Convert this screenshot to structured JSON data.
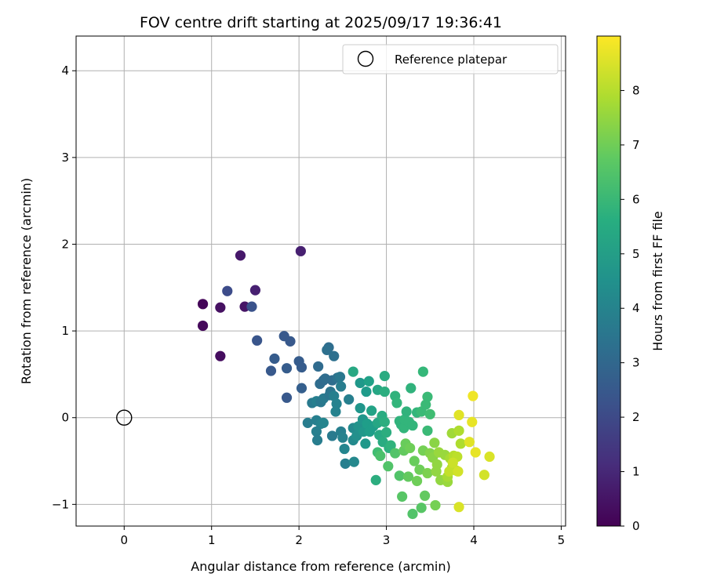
{
  "chart_data": {
    "type": "scatter",
    "title": "FOV centre drift starting at 2025/09/17 19:36:41",
    "xlabel": "Angular distance from reference (arcmin)",
    "ylabel": "Rotation from reference (arcmin)",
    "xlim": [
      -0.55,
      5.05
    ],
    "ylim": [
      -1.25,
      4.4
    ],
    "xticks": [
      0,
      1,
      2,
      3,
      4,
      5
    ],
    "yticks": [
      -1,
      0,
      1,
      2,
      3,
      4
    ],
    "grid": true,
    "legend": {
      "position": "top-right",
      "entries": [
        "Reference platepar"
      ]
    },
    "reference_point": {
      "label": "Reference platepar",
      "x": 0,
      "y": 0,
      "marker": "open-circle"
    },
    "colorbar": {
      "label": "Hours from first FF file",
      "colormap": "viridis",
      "range": [
        0,
        9
      ],
      "ticks": [
        0,
        1,
        2,
        3,
        4,
        5,
        6,
        7,
        8
      ]
    },
    "points": [
      [
        0.9,
        1.31,
        0.1
      ],
      [
        0.9,
        1.06,
        0.2
      ],
      [
        1.1,
        0.71,
        0.3
      ],
      [
        1.1,
        1.27,
        0.4
      ],
      [
        1.33,
        1.87,
        0.6
      ],
      [
        1.38,
        1.28,
        0.5
      ],
      [
        1.5,
        1.47,
        0.8
      ],
      [
        2.02,
        1.92,
        0.8
      ],
      [
        1.18,
        1.46,
        2.1
      ],
      [
        1.46,
        1.28,
        2.3
      ],
      [
        1.52,
        0.89,
        2.4
      ],
      [
        1.68,
        0.54,
        2.5
      ],
      [
        1.72,
        0.68,
        2.6
      ],
      [
        1.83,
        0.94,
        2.5
      ],
      [
        1.86,
        0.23,
        2.5
      ],
      [
        1.86,
        0.57,
        2.6
      ],
      [
        1.9,
        0.88,
        2.5
      ],
      [
        2.0,
        0.65,
        2.6
      ],
      [
        2.03,
        0.58,
        2.6
      ],
      [
        2.03,
        0.34,
        2.7
      ],
      [
        2.22,
        0.59,
        3.1
      ],
      [
        2.24,
        0.39,
        3.2
      ],
      [
        2.28,
        0.43,
        3.1
      ],
      [
        2.3,
        0.45,
        3.2
      ],
      [
        2.34,
        0.81,
        3.2
      ],
      [
        2.32,
        0.78,
        3.3
      ],
      [
        2.4,
        0.71,
        3.3
      ],
      [
        2.38,
        0.43,
        3.2
      ],
      [
        2.36,
        0.3,
        3.5
      ],
      [
        2.44,
        0.46,
        3.4
      ],
      [
        2.47,
        0.47,
        3.6
      ],
      [
        2.48,
        0.36,
        3.8
      ],
      [
        2.15,
        0.17,
        3.7
      ],
      [
        2.2,
        0.19,
        3.9
      ],
      [
        2.25,
        0.18,
        3.6
      ],
      [
        2.28,
        0.22,
        3.7
      ],
      [
        2.35,
        0.26,
        3.5
      ],
      [
        2.4,
        0.25,
        3.9
      ],
      [
        2.43,
        0.16,
        4.0
      ],
      [
        2.42,
        0.07,
        4.0
      ],
      [
        2.1,
        -0.06,
        3.8
      ],
      [
        2.2,
        -0.03,
        3.9
      ],
      [
        2.25,
        -0.07,
        4.0
      ],
      [
        2.28,
        -0.06,
        4.1
      ],
      [
        2.2,
        -0.16,
        3.9
      ],
      [
        2.21,
        -0.26,
        3.8
      ],
      [
        2.38,
        -0.21,
        3.7
      ],
      [
        2.48,
        -0.16,
        3.9
      ],
      [
        2.5,
        -0.23,
        4.0
      ],
      [
        2.52,
        -0.36,
        4.1
      ],
      [
        2.53,
        -0.53,
        3.9
      ],
      [
        2.57,
        0.21,
        3.9
      ],
      [
        2.62,
        -0.12,
        4.3
      ],
      [
        2.62,
        -0.26,
        4.3
      ],
      [
        2.63,
        -0.51,
        4.2
      ],
      [
        2.66,
        -0.21,
        4.5
      ],
      [
        2.68,
        -0.1,
        4.6
      ],
      [
        2.7,
        0.11,
        4.7
      ],
      [
        2.7,
        0.4,
        4.8
      ],
      [
        2.73,
        -0.02,
        4.7
      ],
      [
        2.74,
        -0.16,
        4.8
      ],
      [
        2.76,
        -0.3,
        4.8
      ],
      [
        2.77,
        0.3,
        4.9
      ],
      [
        2.78,
        -0.07,
        5.0
      ],
      [
        2.8,
        0.42,
        5.1
      ],
      [
        2.81,
        -0.16,
        5.0
      ],
      [
        2.83,
        0.08,
        5.2
      ],
      [
        2.85,
        -0.1,
        5.0
      ],
      [
        2.62,
        0.53,
        5.4
      ],
      [
        2.9,
        0.32,
        5.3
      ],
      [
        2.9,
        -0.06,
        5.3
      ],
      [
        2.92,
        -0.2,
        5.4
      ],
      [
        2.95,
        0.02,
        5.5
      ],
      [
        2.96,
        -0.28,
        5.5
      ],
      [
        2.98,
        0.3,
        5.6
      ],
      [
        2.98,
        0.48,
        5.5
      ],
      [
        2.98,
        -0.05,
        5.6
      ],
      [
        3.0,
        -0.17,
        5.6
      ],
      [
        3.03,
        -0.35,
        5.7
      ],
      [
        3.05,
        -0.32,
        5.8
      ],
      [
        3.1,
        0.25,
        5.8
      ],
      [
        3.12,
        0.17,
        5.9
      ],
      [
        3.15,
        -0.04,
        5.8
      ],
      [
        3.17,
        -0.08,
        5.8
      ],
      [
        3.2,
        -0.12,
        5.9
      ],
      [
        3.21,
        -0.02,
        5.9
      ],
      [
        3.23,
        0.07,
        5.8
      ],
      [
        3.26,
        -0.05,
        5.9
      ],
      [
        3.28,
        0.34,
        5.8
      ],
      [
        3.3,
        -0.09,
        5.9
      ],
      [
        3.35,
        0.06,
        5.9
      ],
      [
        3.4,
        0.07,
        6.1
      ],
      [
        3.42,
        0.53,
        6.0
      ],
      [
        3.45,
        0.15,
        6.1
      ],
      [
        3.47,
        0.24,
        6.1
      ],
      [
        3.5,
        0.04,
        6.2
      ],
      [
        3.47,
        -0.15,
        6.1
      ],
      [
        2.88,
        -0.72,
        5.6
      ],
      [
        2.9,
        -0.4,
        6.2
      ],
      [
        2.93,
        -0.44,
        6.4
      ],
      [
        3.02,
        -0.56,
        6.5
      ],
      [
        3.1,
        -0.41,
        6.5
      ],
      [
        3.15,
        -0.67,
        6.5
      ],
      [
        3.18,
        -0.91,
        6.6
      ],
      [
        3.2,
        -0.38,
        6.8
      ],
      [
        3.22,
        -0.3,
        6.9
      ],
      [
        3.25,
        -0.68,
        6.8
      ],
      [
        3.27,
        -0.35,
        7.0
      ],
      [
        3.3,
        -1.11,
        6.5
      ],
      [
        3.32,
        -0.5,
        6.9
      ],
      [
        3.35,
        -0.73,
        7.0
      ],
      [
        3.38,
        -0.6,
        7.0
      ],
      [
        3.4,
        -1.04,
        6.6
      ],
      [
        3.42,
        -0.38,
        7.1
      ],
      [
        3.44,
        -0.9,
        6.8
      ],
      [
        3.47,
        -0.64,
        7.2
      ],
      [
        3.5,
        -0.41,
        7.3
      ],
      [
        3.53,
        -0.46,
        7.4
      ],
      [
        3.55,
        -0.29,
        7.4
      ],
      [
        3.56,
        -1.01,
        7.1
      ],
      [
        3.57,
        -0.62,
        7.5
      ],
      [
        3.58,
        -0.54,
        7.5
      ],
      [
        3.6,
        -0.4,
        7.6
      ],
      [
        3.62,
        -0.72,
        7.5
      ],
      [
        3.67,
        -0.43,
        7.6
      ],
      [
        3.7,
        -0.74,
        7.6
      ],
      [
        3.73,
        -0.47,
        7.8
      ],
      [
        3.75,
        -0.58,
        7.8
      ],
      [
        3.75,
        -0.18,
        7.7
      ],
      [
        3.77,
        -0.44,
        8.0
      ],
      [
        3.8,
        -0.61,
        8.0
      ],
      [
        3.81,
        -0.45,
        8.1
      ],
      [
        3.83,
        -0.15,
        7.9
      ],
      [
        3.85,
        -0.3,
        7.9
      ],
      [
        3.7,
        -0.68,
        7.8
      ],
      [
        3.72,
        -0.62,
        8.2
      ],
      [
        3.76,
        -0.52,
        8.3
      ],
      [
        3.82,
        -0.62,
        8.4
      ],
      [
        3.83,
        0.03,
        8.6
      ],
      [
        3.83,
        -1.03,
        8.5
      ],
      [
        3.95,
        -0.28,
        8.6
      ],
      [
        3.98,
        -0.05,
        8.7
      ],
      [
        3.99,
        0.25,
        8.8
      ],
      [
        4.02,
        -0.4,
        8.7
      ],
      [
        4.12,
        -0.66,
        8.4
      ],
      [
        4.18,
        -0.45,
        8.5
      ]
    ]
  }
}
